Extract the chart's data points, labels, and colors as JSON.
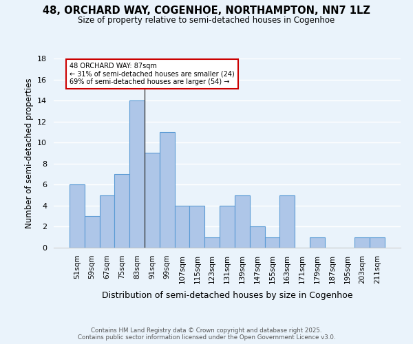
{
  "title": "48, ORCHARD WAY, COGENHOE, NORTHAMPTON, NN7 1LZ",
  "subtitle": "Size of property relative to semi-detached houses in Cogenhoe",
  "xlabel": "Distribution of semi-detached houses by size in Cogenhoe",
  "ylabel": "Number of semi-detached properties",
  "categories": [
    "51sqm",
    "59sqm",
    "67sqm",
    "75sqm",
    "83sqm",
    "91sqm",
    "99sqm",
    "107sqm",
    "115sqm",
    "123sqm",
    "131sqm",
    "139sqm",
    "147sqm",
    "155sqm",
    "163sqm",
    "171sqm",
    "179sqm",
    "187sqm",
    "195sqm",
    "203sqm",
    "211sqm"
  ],
  "values": [
    6,
    3,
    5,
    7,
    14,
    9,
    11,
    4,
    4,
    1,
    4,
    5,
    2,
    1,
    5,
    0,
    1,
    0,
    0,
    1,
    1
  ],
  "bar_color": "#aec6e8",
  "bar_edgecolor": "#5b9bd5",
  "annotation_line1": "48 ORCHARD WAY: 87sqm",
  "annotation_line2": "← 31% of semi-detached houses are smaller (24)",
  "annotation_line3": "69% of semi-detached houses are larger (54) →",
  "vline_x": 4.5,
  "ylim": [
    0,
    18
  ],
  "yticks": [
    0,
    2,
    4,
    6,
    8,
    10,
    12,
    14,
    16,
    18
  ],
  "footer1": "Contains HM Land Registry data © Crown copyright and database right 2025.",
  "footer2": "Contains public sector information licensed under the Open Government Licence v3.0.",
  "background_color": "#eaf3fb",
  "plot_bg_color": "#eaf3fb",
  "grid_color": "#ffffff",
  "annotation_box_edgecolor": "#cc0000",
  "annotation_box_facecolor": "#ffffff"
}
